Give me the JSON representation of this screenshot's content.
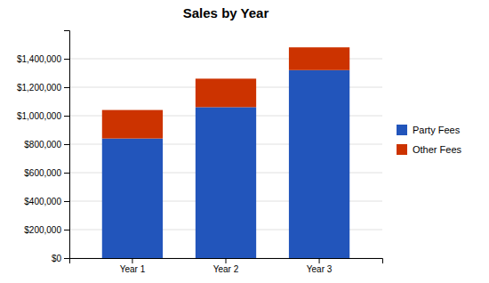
{
  "chart_data": {
    "type": "bar",
    "title": "Sales by Year",
    "categories": [
      "Year 1",
      "Year 2",
      "Year 3"
    ],
    "series": [
      {
        "name": "Party Fees",
        "color": "#2255BB",
        "values": [
          840000,
          1060000,
          1320000
        ]
      },
      {
        "name": "Other Fees",
        "color": "#CC3300",
        "values": [
          200000,
          200000,
          160000
        ]
      }
    ],
    "stacked": true,
    "ylim": [
      0,
      1600000
    ],
    "yticks": [
      {
        "value": 0,
        "label": "$0"
      },
      {
        "value": 200000,
        "label": "$200,000"
      },
      {
        "value": 400000,
        "label": "$400,000"
      },
      {
        "value": 600000,
        "label": "$600,000"
      },
      {
        "value": 800000,
        "label": "$800,000"
      },
      {
        "value": 1000000,
        "label": "$1,000,000"
      },
      {
        "value": 1200000,
        "label": "$1,200,000"
      },
      {
        "value": 1400000,
        "label": "$1,400,000"
      }
    ],
    "grid": true,
    "legend": "right"
  }
}
